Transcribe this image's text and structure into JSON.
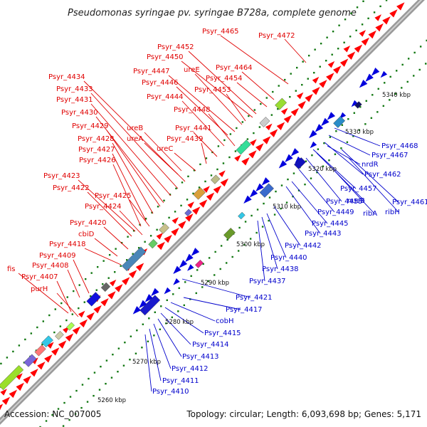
{
  "title": "Pseudomonas syringae pv. syringae B728a, complete genome",
  "accession": "Accession: NC_007005",
  "summary": "Topology: circular; Length: 6,093,698 bp; Genes: 5,171",
  "colors": {
    "forward": "#ff0000",
    "reverse": "#0000dd",
    "forward_label": "#e00000",
    "reverse_label": "#0000cc",
    "backbone": "#888888",
    "tick": "#117711"
  },
  "ruler": [
    "5260 kbp",
    "5270 kbp",
    "5280 kbp",
    "5290 kbp",
    "5300 kbp",
    "5310 kbp",
    "5320 kbp",
    "5330 kbp",
    "5340 kbp"
  ],
  "forward_labels": [
    "Psyr_4465",
    "Psyr_4472",
    "Psyr_4452",
    "Psyr_4450",
    "Psyr_4464",
    "ureE",
    "Psyr_4447",
    "Psyr_4454",
    "Psyr_4446",
    "Psyr_4453",
    "Psyr_4434",
    "Psyr_4433",
    "Psyr_4444",
    "Psyr_4431",
    "Psyr_4448",
    "Psyr_4430",
    "ureB",
    "Psyr_4429",
    "ureA",
    "Psyr_4441",
    "Psyr_4428",
    "Psyr_4439",
    "Psyr_4427",
    "ureC",
    "Psyr_4426",
    "Psyr_4423",
    "Psyr_4422",
    "Psyr_4425",
    "Psyr_4424",
    "Psyr_4420",
    "cbiD",
    "Psyr_4418",
    "Psyr_4409",
    "Psyr_4408",
    "fis",
    "Psyr_4407",
    "purH"
  ],
  "reverse_labels": [
    "Psyr_4468",
    "Psyr_4467",
    "nrdR",
    "Psyr_4462",
    "Psyr_4457",
    "nusB",
    "Psyr_4461",
    "Psyr_4455",
    "ribH",
    "Psyr_4449",
    "ribA",
    "Psyr_4445",
    "Psyr_4443",
    "Psyr_4442",
    "Psyr_4440",
    "Psyr_4438",
    "Psyr_4437",
    "Psyr_4421",
    "Psyr_4417",
    "cobH",
    "Psyr_4415",
    "Psyr_4414",
    "Psyr_4413",
    "Psyr_4412",
    "Psyr_4411",
    "Psyr_4410"
  ]
}
